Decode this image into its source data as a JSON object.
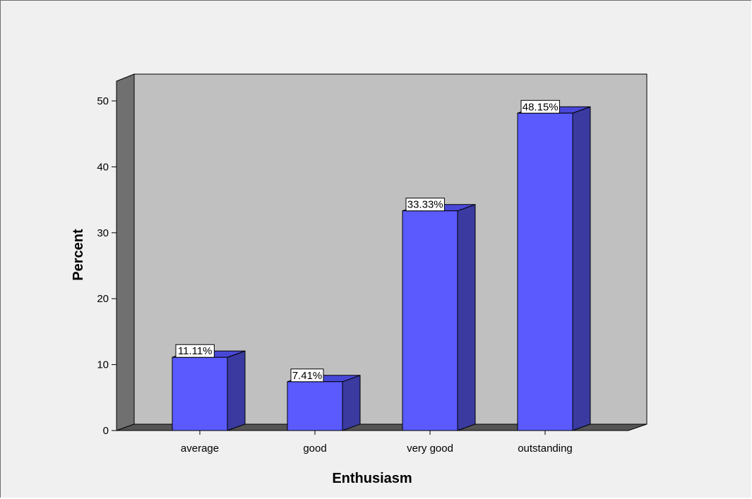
{
  "chart_data": {
    "type": "bar",
    "style": "3d",
    "categories": [
      "average",
      "good",
      "very good",
      "outstanding"
    ],
    "values": [
      11.11,
      7.41,
      33.33,
      48.15
    ],
    "data_labels": [
      "11.11%",
      "7.41%",
      "33.33%",
      "48.15%"
    ],
    "xlabel": "Enthusiasm",
    "ylabel": "Percent",
    "ylim": [
      0,
      53
    ],
    "yticks": [
      0,
      10,
      20,
      30,
      40,
      50
    ],
    "grid": false,
    "legend": "none"
  },
  "colors": {
    "bar_front": "#5a5aff",
    "bar_side": "#3a3aa0",
    "bar_top": "#4848d8",
    "plot_back": "#c0c0c0",
    "plot_wall": "#707070",
    "plot_floor": "#555555",
    "background": "#f0f0f0"
  }
}
